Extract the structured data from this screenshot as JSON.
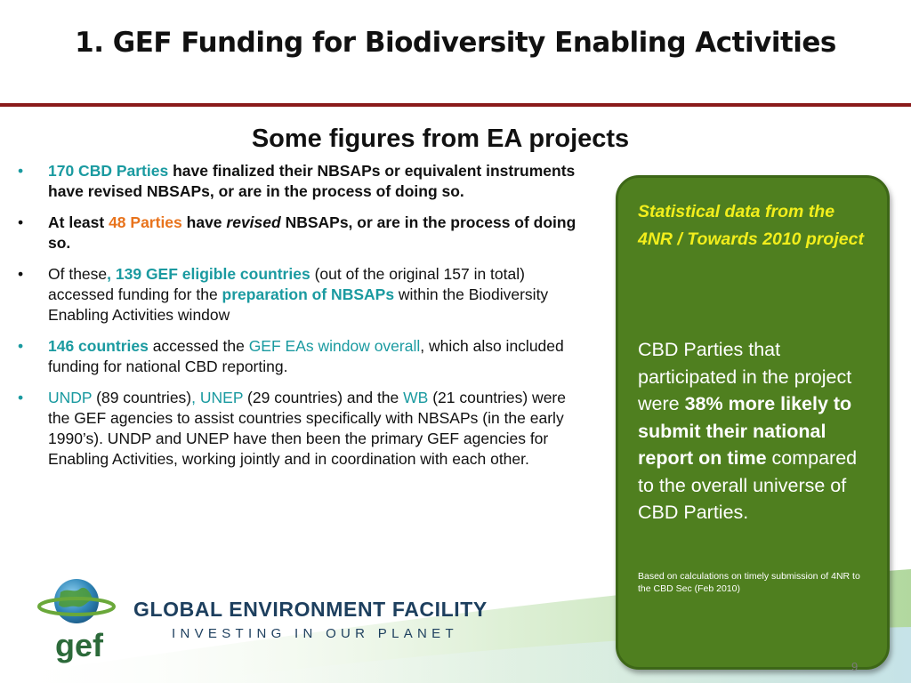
{
  "slide": {
    "title": "1. GEF Funding for Biodiversity Enabling Activities",
    "subtitle": "Some figures from EA projects",
    "page_number": "9"
  },
  "bullets": [
    {
      "bullet": "•",
      "parts": [
        "170 CBD Parties",
        " have finalized their NBSAPs or equivalent instruments have revised NBSAPs, or are in the process of doing so."
      ]
    },
    {
      "bullet": "•",
      "parts": [
        "At least ",
        "48 Parties",
        " have ",
        "revised",
        " NBSAPs, or are in the process of doing so."
      ]
    },
    {
      "bullet": "•",
      "parts": [
        "Of these",
        ", 139 GEF eligible countries",
        " (out of the original 157 in total) accessed funding for the ",
        "preparation of NBSAPs",
        " within the Biodiversity Enabling Activities window"
      ]
    },
    {
      "bullet": "•",
      "parts": [
        "146 countries",
        " accessed the ",
        "GEF EAs window overall",
        ", which also included funding for national CBD reporting."
      ]
    },
    {
      "bullet": "•",
      "parts": [
        "UNDP",
        " (89 countries)",
        ", UNEP",
        " (29 countries) and the ",
        "WB",
        " (21 countries) were the GEF agencies to assist countries specifically with NBSAPs (in the early 1990’s). UNDP and UNEP have then been the primary GEF agencies for Enabling Activities, working jointly and in coordination with each other."
      ]
    }
  ],
  "callout": {
    "heading": "Statistical data from the 4NR / Towards 2010 project",
    "body_parts": [
      "CBD Parties that participated in the project were ",
      "38% more likely to submit their national report on time",
      " compared to the overall universe of CBD Parties."
    ],
    "note": "Based on calculations on timely submission of 4NR to the CBD Sec (Feb 2010)"
  },
  "footer": {
    "logo_text": "gef",
    "org_name": "GLOBAL ENVIRONMENT FACILITY",
    "tagline": "INVESTING IN OUR PLANET"
  },
  "colors": {
    "teal": "#1a9aa0",
    "orange": "#e8731c",
    "box_green": "#4f7f1f",
    "heading_yellow": "#f2ee1c",
    "title_rule": "#8a1a1a",
    "gef_navy": "#1d3f5e"
  }
}
